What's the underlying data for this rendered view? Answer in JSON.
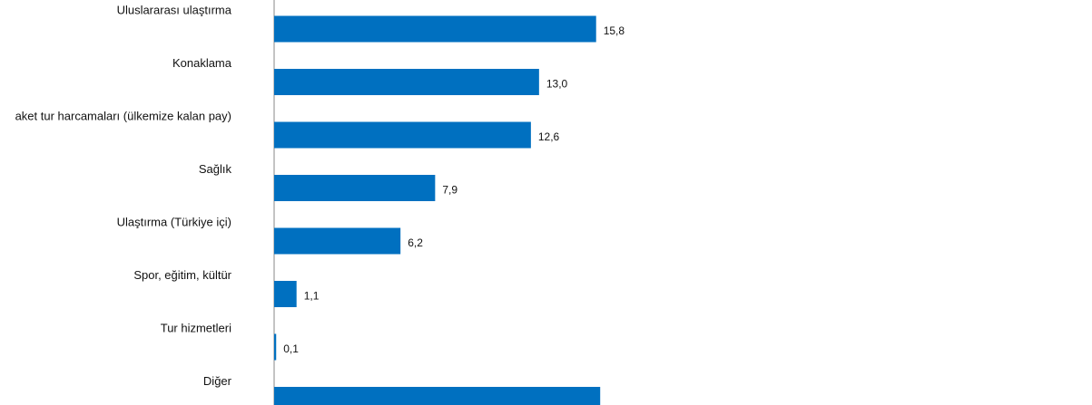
{
  "chart_data": {
    "type": "hbar",
    "categories": [
      "Uluslararası ulaştırma",
      "Konaklama",
      "aket tur harcamaları (ülkemize kalan pay)",
      "Sağlık",
      "Ulaştırma (Türkiye içi)",
      "Spor, eğitim, kültür",
      "Tur hizmetleri",
      "Diğer"
    ],
    "values": [
      15.8,
      13.0,
      12.6,
      7.9,
      6.2,
      1.1,
      0.1,
      16
    ],
    "value_labels": [
      "15,8",
      "13,0",
      "12,6",
      "7,9",
      "6,2",
      "1,1",
      "0,1",
      null
    ],
    "color": "#0070c0",
    "xlim": [
      0,
      40
    ]
  }
}
